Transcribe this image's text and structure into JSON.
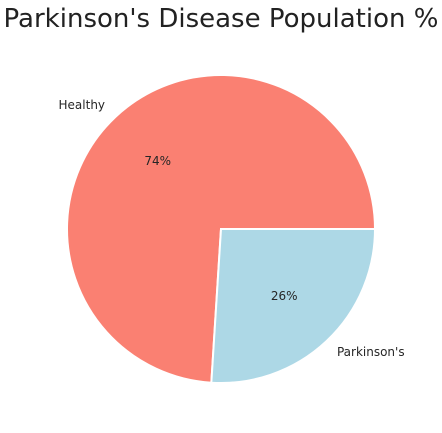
{
  "chart_data": {
    "type": "pie",
    "title": "Parkinson's Disease Population %",
    "labels": [
      "Healthy",
      "Parkinson's"
    ],
    "values": [
      74,
      26
    ],
    "percent_labels": [
      "74%",
      "26%"
    ],
    "colors": [
      "#fa8072",
      "#add8e6"
    ],
    "legend": "none"
  }
}
